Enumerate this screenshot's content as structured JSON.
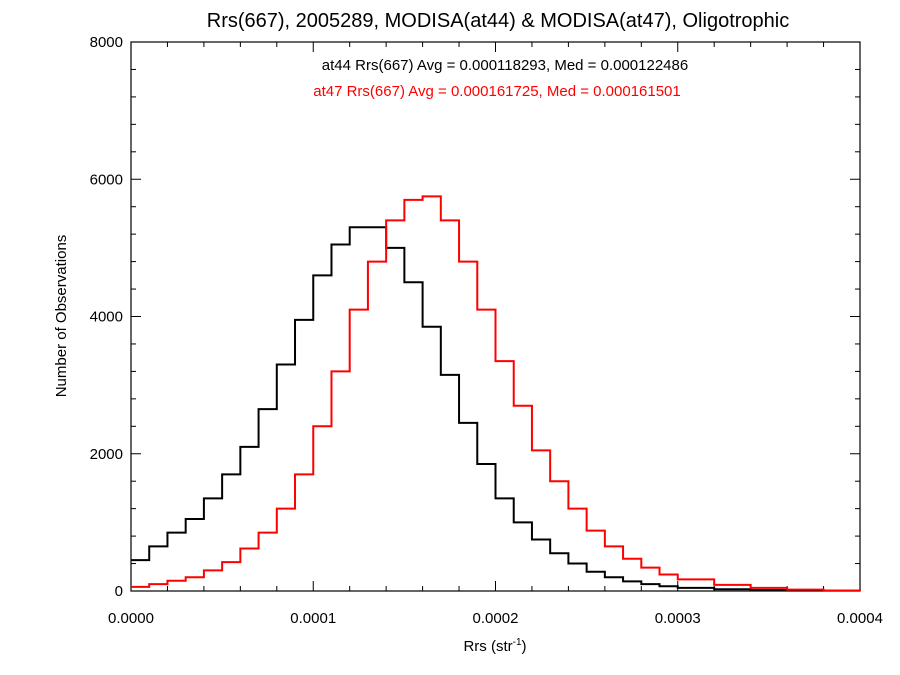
{
  "chart_data": {
    "type": "line",
    "title": "Rrs(667), 2005289, MODISA(at44) & MODISA(at47), Oligotrophic",
    "xlabel": "Rrs (str",
    "xlabel_sup": "-1",
    "xlabel_close": ")",
    "ylabel": "Number of Observations",
    "xlim": [
      0.0,
      0.0004
    ],
    "ylim": [
      0,
      8000
    ],
    "x_ticks": [
      "0.0000",
      "0.0001",
      "0.0002",
      "0.0003",
      "0.0004"
    ],
    "y_ticks": [
      "0",
      "2000",
      "4000",
      "6000",
      "8000"
    ],
    "grid": false,
    "annotations": [
      {
        "text": "at44 Rrs(667) Avg = 0.000118293, Med = 0.000122486",
        "color": "#000000"
      },
      {
        "text": "at47 Rrs(667) Avg = 0.000161725, Med = 0.000161501",
        "color": "#ff0000"
      }
    ],
    "x": [
      0.0,
      1e-05,
      2e-05,
      3e-05,
      4e-05,
      5e-05,
      6e-05,
      7e-05,
      8e-05,
      9e-05,
      0.0001,
      0.00011,
      0.00012,
      0.00013,
      0.00014,
      0.00015,
      0.00016,
      0.00017,
      0.00018,
      0.00019,
      0.0002,
      0.00021,
      0.00022,
      0.00023,
      0.00024,
      0.00025,
      0.00026,
      0.00027,
      0.00028,
      0.00029,
      0.0003,
      0.00032,
      0.00034,
      0.00036,
      0.00038,
      0.0004
    ],
    "series": [
      {
        "name": "at44",
        "color": "#000000",
        "values": [
          450,
          650,
          850,
          1050,
          1350,
          1700,
          2100,
          2650,
          3300,
          3950,
          4600,
          5050,
          5300,
          5300,
          5000,
          4500,
          3850,
          3150,
          2450,
          1850,
          1350,
          1000,
          750,
          550,
          400,
          280,
          200,
          140,
          100,
          70,
          45,
          25,
          15,
          8,
          5,
          0
        ]
      },
      {
        "name": "at47",
        "color": "#ff0000",
        "values": [
          60,
          100,
          150,
          200,
          300,
          420,
          620,
          850,
          1200,
          1700,
          2400,
          3200,
          4100,
          4800,
          5400,
          5700,
          5750,
          5400,
          4800,
          4100,
          3350,
          2700,
          2050,
          1600,
          1200,
          880,
          650,
          470,
          340,
          240,
          170,
          90,
          45,
          20,
          8,
          0
        ]
      }
    ]
  }
}
